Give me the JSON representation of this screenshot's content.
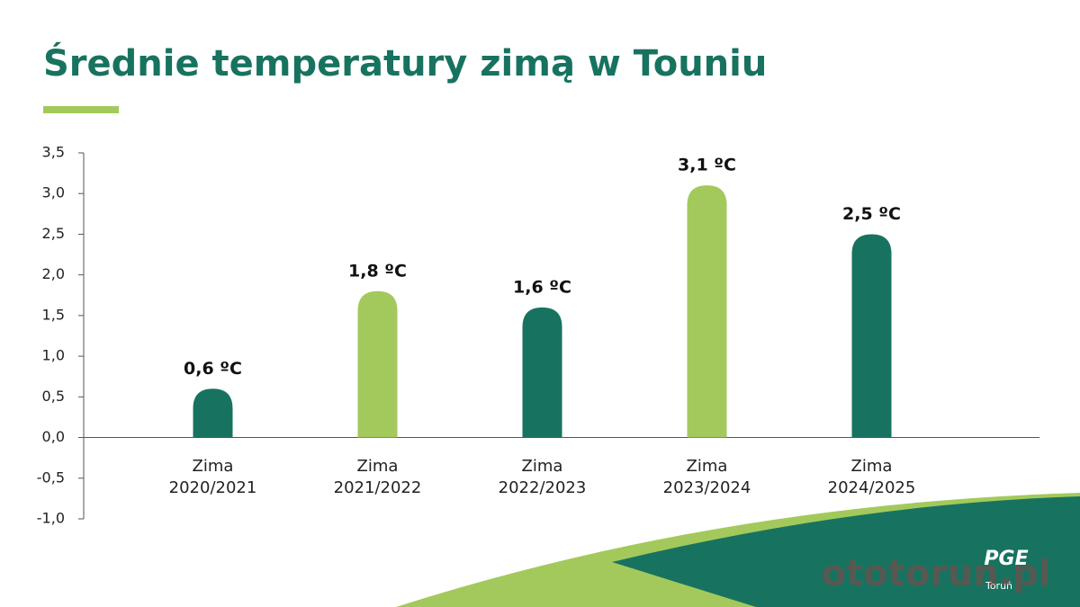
{
  "chart_data": {
    "type": "bar",
    "title": "Średnie temperatury zimą w Touniu",
    "categories": [
      "Zima 2020/2021",
      "Zima 2021/2022",
      "Zima 2022/2023",
      "Zima 2023/2024",
      "Zima 2024/2025"
    ],
    "values": [
      0.6,
      1.8,
      1.6,
      3.1,
      2.5
    ],
    "value_labels": [
      "0,6 ºC",
      "1,8 ºC",
      "1,6 ºC",
      "3,1 ºC",
      "2,5 ºC"
    ],
    "colors": [
      "#17735f",
      "#a3c95c",
      "#17735f",
      "#a3c95c",
      "#17735f"
    ],
    "ylim": [
      -1,
      3.5
    ],
    "yticks": [
      {
        "value": -1,
        "label": "-1,0"
      },
      {
        "value": -0.5,
        "label": "-0,5"
      },
      {
        "value": 0,
        "label": "0,0"
      },
      {
        "value": 0.5,
        "label": "0,5"
      },
      {
        "value": 1,
        "label": "1,0"
      },
      {
        "value": 1.5,
        "label": "1,5"
      },
      {
        "value": 2,
        "label": "2,0"
      },
      {
        "value": 2.5,
        "label": "2,5"
      },
      {
        "value": 3,
        "label": "3,0"
      },
      {
        "value": 3.5,
        "label": "3,5"
      }
    ],
    "grid": false,
    "logo": "PGE",
    "logo_sub": "Toruń",
    "watermark": "ototorun.pl"
  }
}
